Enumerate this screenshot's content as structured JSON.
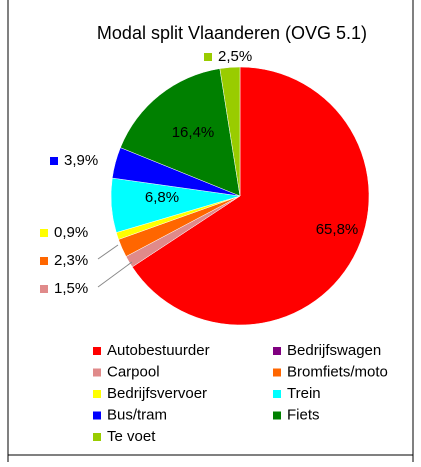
{
  "chart_data": {
    "type": "pie",
    "title": "Modal split Vlaanderen (OVG 5.1)",
    "categories": [
      "Autobestuurder",
      "Bedrijfswagen",
      "Carpool",
      "Bromfiets/moto",
      "Bedrijfsvervoer",
      "Trein",
      "Bus/tram",
      "Fiets",
      "Te voet"
    ],
    "values": [
      65.8,
      0,
      1.5,
      2.3,
      0.9,
      6.8,
      3.9,
      16.4,
      2.5
    ],
    "value_labels": [
      "65,8%",
      null,
      "1,5%",
      "2,3%",
      "0,9%",
      "6,8%",
      "3,9%",
      "16,4%",
      "2,5%"
    ],
    "colors": [
      "#ff0000",
      "#800080",
      "#e08a8a",
      "#ff6600",
      "#ffff00",
      "#00ffff",
      "#0000ff",
      "#008000",
      "#99cc00"
    ]
  }
}
